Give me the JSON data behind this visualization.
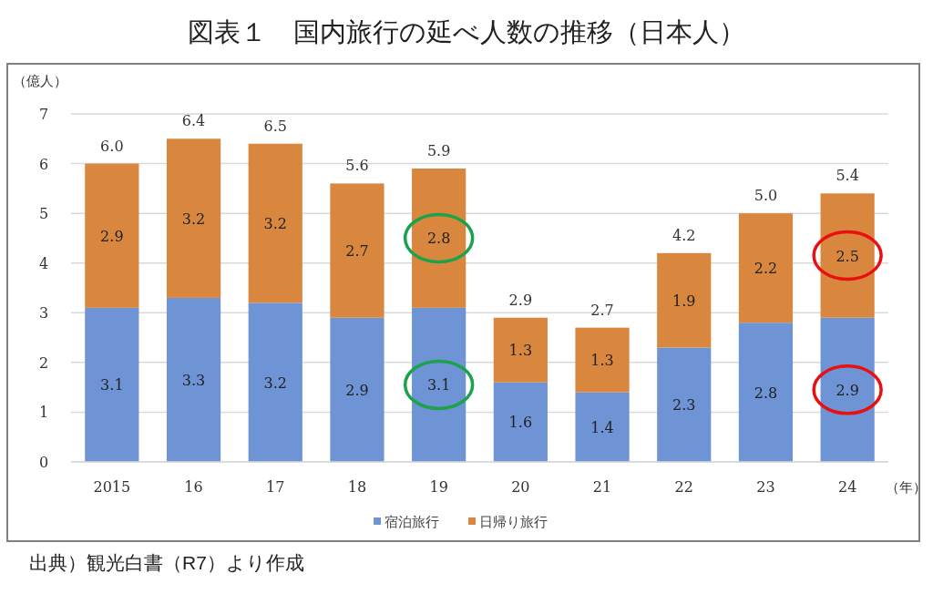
{
  "chart_data": {
    "type": "bar",
    "title": "図表１　国内旅行の延べ人数の推移（日本人）",
    "ylabel": "（億人）",
    "xlabel": "（年）",
    "categories": [
      "2015",
      "16",
      "17",
      "18",
      "19",
      "20",
      "21",
      "22",
      "23",
      "24"
    ],
    "series": [
      {
        "name": "宿泊旅行",
        "color": "#6f94d6",
        "values": [
          3.1,
          3.3,
          3.2,
          2.9,
          3.1,
          1.6,
          1.4,
          2.3,
          2.8,
          2.9
        ]
      },
      {
        "name": "日帰り旅行",
        "color": "#d9873f",
        "values": [
          2.9,
          3.2,
          3.2,
          2.7,
          2.8,
          1.3,
          1.3,
          1.9,
          2.2,
          2.5
        ]
      }
    ],
    "stacked": true,
    "data_labels": true,
    "totals": [
      "6.0",
      "6.4",
      "6.5",
      "5.6",
      "5.9",
      "2.9",
      "2.7",
      "4.2",
      "5.0",
      "5.4"
    ],
    "ylim": [
      0,
      7
    ],
    "yticks": [
      0,
      1,
      2,
      3,
      4,
      5,
      6,
      7
    ],
    "grid": "y",
    "legend": "bottom",
    "annotations": [
      "出典）観光白書（R7）より作成"
    ]
  }
}
